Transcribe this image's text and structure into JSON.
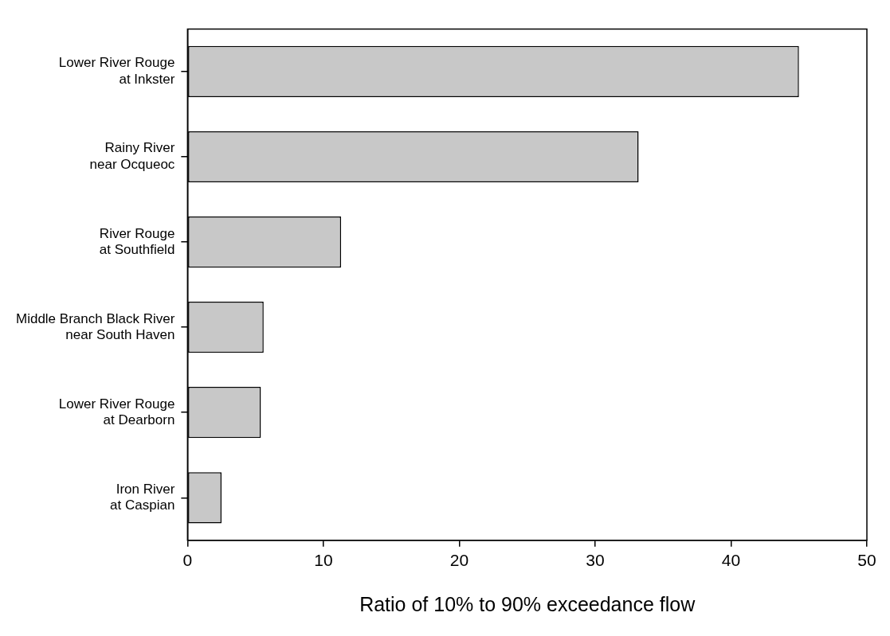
{
  "chart_data": {
    "type": "bar",
    "orientation": "horizontal",
    "xlabel": "Ratio of 10% to 90% exceedance flow",
    "categories": [
      "Lower River Rouge\nat Inkster",
      "Rainy River\nnear Ocqueoc",
      "River Rouge\nat Southfield",
      "Middle Branch Black River\nnear South Haven",
      "Lower River Rouge\nat Dearborn",
      "Iron River\nat Caspian"
    ],
    "values": [
      45,
      33.2,
      11.3,
      5.6,
      5.4,
      2.5
    ],
    "color": "#c8c8c8",
    "xlim": [
      0,
      50
    ],
    "xticks": [
      0,
      10,
      20,
      30,
      40,
      50
    ],
    "grid": false,
    "legend": false
  }
}
